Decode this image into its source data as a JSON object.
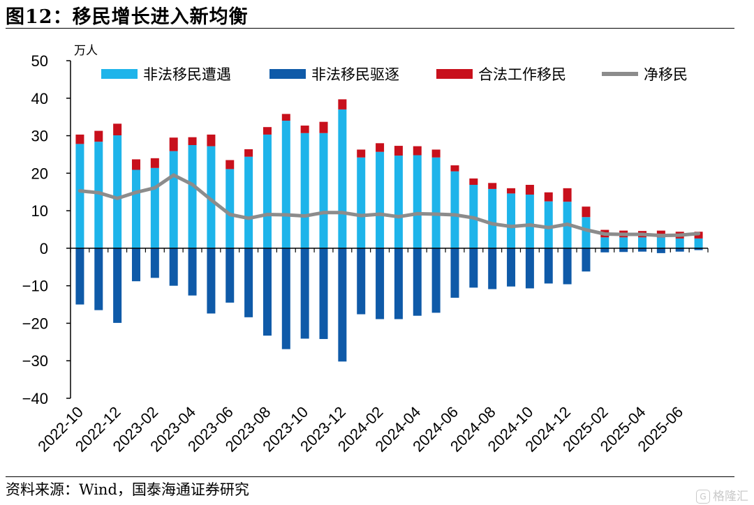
{
  "header": {
    "title": "图12：移民增长进入新均衡"
  },
  "footer": {
    "source": "资料来源：Wind，国泰海通证券研究",
    "watermark": "格隆汇"
  },
  "colors": {
    "illegal_encounters": "#1eb4ea",
    "illegal_removals": "#0f5aa8",
    "legal_work": "#c8101c",
    "net": "#8c8c8c"
  },
  "chart_data": {
    "type": "bar",
    "unit_label": "万人",
    "ylim": [
      -40,
      50
    ],
    "yticks": [
      50,
      40,
      30,
      20,
      10,
      0,
      -10,
      -20,
      -30,
      -40
    ],
    "ytick_labels": [
      "50",
      "40",
      "30",
      "20",
      "10",
      "0",
      "−10",
      "−20",
      "−30",
      "−40"
    ],
    "legend_position": "top",
    "categories": [
      "2022-10",
      "2022-11",
      "2022-12",
      "2023-01",
      "2023-02",
      "2023-03",
      "2023-04",
      "2023-05",
      "2023-06",
      "2023-07",
      "2023-08",
      "2023-09",
      "2023-10",
      "2023-11",
      "2023-12",
      "2024-01",
      "2024-02",
      "2024-03",
      "2024-04",
      "2024-05",
      "2024-06",
      "2024-07",
      "2024-08",
      "2024-09",
      "2024-10",
      "2024-11",
      "2024-12",
      "2025-01",
      "2025-02",
      "2025-03",
      "2025-04",
      "2025-05",
      "2025-06",
      "2025-07"
    ],
    "xtick_labels": [
      "2022-10",
      "2022-12",
      "2023-02",
      "2023-04",
      "2023-06",
      "2023-08",
      "2023-10",
      "2023-12",
      "2024-02",
      "2024-04",
      "2024-06",
      "2024-08",
      "2024-10",
      "2024-12",
      "2025-02",
      "2025-04",
      "2025-06"
    ],
    "series": [
      {
        "name": "非法移民遭遇",
        "kind": "bar",
        "values": [
          27.8,
          28.4,
          30.1,
          20.9,
          21.4,
          25.9,
          27.5,
          27.2,
          21.1,
          24.4,
          30.3,
          34.0,
          30.7,
          30.7,
          37.0,
          24.2,
          25.7,
          24.7,
          24.8,
          24.2,
          20.5,
          16.9,
          15.8,
          14.6,
          14.3,
          12.5,
          12.4,
          8.3,
          2.9,
          2.9,
          2.9,
          2.9,
          2.6,
          2.6
        ]
      },
      {
        "name": "非法移民驱逐",
        "kind": "bar",
        "values": [
          -15.0,
          -16.5,
          -19.9,
          -8.8,
          -7.9,
          -10.0,
          -12.6,
          -17.4,
          -14.5,
          -18.4,
          -23.3,
          -26.9,
          -24.1,
          -24.2,
          -30.2,
          -17.6,
          -18.9,
          -18.9,
          -18.0,
          -17.2,
          -13.2,
          -10.5,
          -10.9,
          -10.2,
          -10.7,
          -9.4,
          -9.6,
          -6.2,
          -1.1,
          -1.0,
          -0.9,
          -1.3,
          -0.9,
          -0.5
        ]
      },
      {
        "name": "合法工作移民",
        "kind": "bar",
        "values": [
          2.5,
          2.9,
          3.1,
          2.8,
          2.6,
          3.6,
          2.1,
          3.1,
          2.4,
          2.0,
          2.0,
          1.8,
          2.0,
          3.0,
          2.7,
          2.1,
          2.3,
          2.6,
          2.4,
          2.1,
          1.6,
          1.7,
          1.6,
          1.4,
          2.6,
          2.4,
          3.6,
          2.8,
          2.0,
          1.8,
          1.7,
          1.8,
          1.8,
          1.8
        ]
      },
      {
        "name": "净移民",
        "kind": "line",
        "values": [
          15.3,
          14.8,
          13.3,
          14.9,
          16.1,
          19.5,
          17.0,
          12.9,
          9.0,
          8.0,
          9.0,
          8.9,
          8.6,
          9.5,
          9.5,
          8.7,
          9.1,
          8.4,
          9.2,
          9.1,
          8.9,
          8.1,
          6.5,
          5.8,
          6.2,
          5.5,
          6.4,
          4.9,
          3.8,
          3.7,
          3.7,
          3.4,
          3.5,
          3.9
        ]
      }
    ]
  }
}
